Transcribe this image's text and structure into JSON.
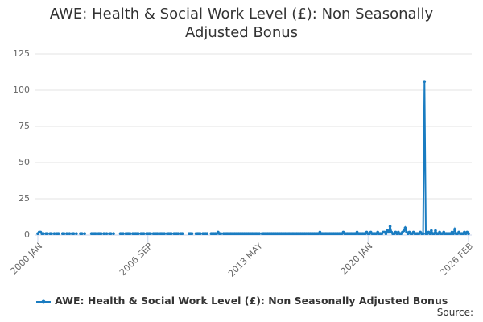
{
  "chart_data": {
    "type": "line",
    "title": "AWE: Health & Social Work Level (£): Non Seasonally Adjusted Bonus",
    "source_label": "Source:",
    "categories": [
      "2000 JAN",
      null,
      null,
      null,
      null,
      null,
      null,
      null,
      null,
      null,
      null,
      null,
      null,
      null,
      null,
      null,
      null,
      null,
      null,
      null,
      null,
      null,
      null,
      null,
      null,
      null,
      null,
      null,
      null,
      null,
      null,
      null,
      null,
      null,
      null,
      null,
      null,
      null,
      null,
      null,
      null,
      null,
      null,
      null,
      null,
      null,
      null,
      null,
      null,
      null,
      null,
      null,
      null,
      null,
      null,
      null,
      null,
      null,
      null,
      null,
      null,
      null,
      null,
      null,
      null,
      null,
      null,
      null,
      null,
      null,
      null,
      null,
      null,
      null,
      null,
      null,
      null,
      null,
      null,
      null,
      "2006 SEP",
      null,
      null,
      null,
      null,
      null,
      null,
      null,
      null,
      null,
      null,
      null,
      null,
      null,
      null,
      null,
      null,
      null,
      null,
      null,
      null,
      null,
      null,
      null,
      null,
      null,
      null,
      null,
      null,
      null,
      null,
      null,
      null,
      null,
      null,
      null,
      null,
      null,
      null,
      null,
      null,
      null,
      null,
      null,
      null,
      null,
      null,
      null,
      null,
      null,
      null,
      null,
      null,
      null,
      null,
      null,
      null,
      null,
      null,
      null,
      null,
      null,
      null,
      null,
      null,
      null,
      null,
      null,
      null,
      null,
      null,
      null,
      null,
      null,
      null,
      null,
      null,
      null,
      null,
      null,
      "2013 MAY",
      null,
      null,
      null,
      null,
      null,
      null,
      null,
      null,
      null,
      null,
      null,
      null,
      null,
      null,
      null,
      null,
      null,
      null,
      null,
      null,
      null,
      null,
      null,
      null,
      null,
      null,
      null,
      null,
      null,
      null,
      null,
      null,
      null,
      null,
      null,
      null,
      null,
      null,
      null,
      null,
      null,
      null,
      null,
      null,
      null,
      null,
      null,
      null,
      null,
      null,
      null,
      null,
      null,
      null,
      null,
      null,
      null,
      null,
      null,
      null,
      null,
      null,
      null,
      null,
      null,
      null,
      null,
      null,
      null,
      null,
      null,
      null,
      null,
      null,
      null,
      null,
      null,
      null,
      null,
      "2020 JAN",
      null,
      null,
      null,
      null,
      null,
      null,
      null,
      null,
      null,
      null,
      null,
      null,
      null,
      null,
      null,
      null,
      null,
      null,
      null,
      null,
      null,
      null,
      null,
      null,
      null,
      null,
      null,
      null,
      null,
      null,
      null,
      null,
      null,
      null,
      null,
      null,
      null,
      null,
      null,
      null,
      null,
      null,
      null,
      null,
      null,
      null,
      null,
      null,
      null,
      null,
      null,
      null,
      null,
      null,
      null,
      null,
      null,
      null,
      null,
      null,
      null,
      null,
      null,
      null,
      null,
      null,
      null,
      null,
      null,
      null,
      null,
      null,
      "2026 FEB"
    ],
    "series": [
      {
        "name": "AWE: Health & Social Work Level (£): Non Seasonally Adjusted Bonus",
        "color": "#1a7cc1",
        "values": [
          1,
          2,
          2,
          1,
          1,
          null,
          1,
          1,
          null,
          1,
          1,
          null,
          1,
          null,
          1,
          1,
          null,
          null,
          1,
          1,
          null,
          1,
          null,
          1,
          null,
          1,
          1,
          null,
          1,
          null,
          null,
          1,
          1,
          null,
          1,
          null,
          null,
          null,
          null,
          1,
          1,
          1,
          1,
          null,
          1,
          1,
          1,
          null,
          1,
          null,
          1,
          null,
          1,
          1,
          null,
          1,
          null,
          null,
          null,
          null,
          1,
          1,
          1,
          null,
          1,
          1,
          1,
          1,
          null,
          1,
          1,
          1,
          1,
          1,
          null,
          1,
          1,
          1,
          null,
          1,
          1,
          1,
          1,
          null,
          1,
          1,
          1,
          1,
          null,
          1,
          1,
          1,
          1,
          null,
          1,
          1,
          1,
          1,
          null,
          1,
          1,
          1,
          1,
          null,
          1,
          1,
          null,
          null,
          null,
          null,
          1,
          1,
          1,
          null,
          null,
          1,
          1,
          1,
          1,
          null,
          1,
          1,
          1,
          1,
          null,
          null,
          1,
          1,
          1,
          1,
          1,
          2,
          1,
          1,
          null,
          1,
          1,
          1,
          1,
          1,
          1,
          1,
          1,
          1,
          1,
          1,
          1,
          1,
          1,
          1,
          1,
          1,
          1,
          1,
          1,
          1,
          1,
          1,
          1,
          1,
          1,
          1,
          null,
          1,
          1,
          1,
          1,
          1,
          1,
          1,
          1,
          1,
          1,
          1,
          1,
          1,
          1,
          1,
          1,
          1,
          1,
          1,
          1,
          1,
          1,
          1,
          1,
          1,
          1,
          1,
          1,
          1,
          1,
          1,
          1,
          1,
          1,
          1,
          1,
          1,
          1,
          1,
          1,
          1,
          1,
          2,
          1,
          1,
          1,
          1,
          1,
          1,
          1,
          1,
          1,
          1,
          1,
          1,
          1,
          1,
          1,
          1,
          2,
          1,
          1,
          1,
          1,
          1,
          1,
          1,
          1,
          1,
          2,
          1,
          1,
          1,
          1,
          1,
          1,
          2,
          1,
          1,
          2,
          1,
          1,
          1,
          1,
          2,
          1,
          1,
          1,
          2,
          2,
          1,
          3,
          2,
          6,
          2,
          1,
          1,
          2,
          1,
          2,
          1,
          1,
          2,
          3,
          5,
          2,
          1,
          2,
          1,
          1,
          2,
          1,
          1,
          1,
          1,
          2,
          1,
          1,
          106,
          1,
          1,
          2,
          1,
          3,
          1,
          1,
          3,
          1,
          1,
          2,
          1,
          1,
          2,
          1,
          1,
          1,
          1,
          1,
          2,
          1,
          4,
          1,
          1,
          2,
          1,
          1,
          1,
          2,
          1,
          2,
          1
        ]
      }
    ],
    "ylim": [
      0,
      125
    ],
    "yticks": [
      0,
      25,
      50,
      75,
      100,
      125
    ],
    "grid": true
  }
}
